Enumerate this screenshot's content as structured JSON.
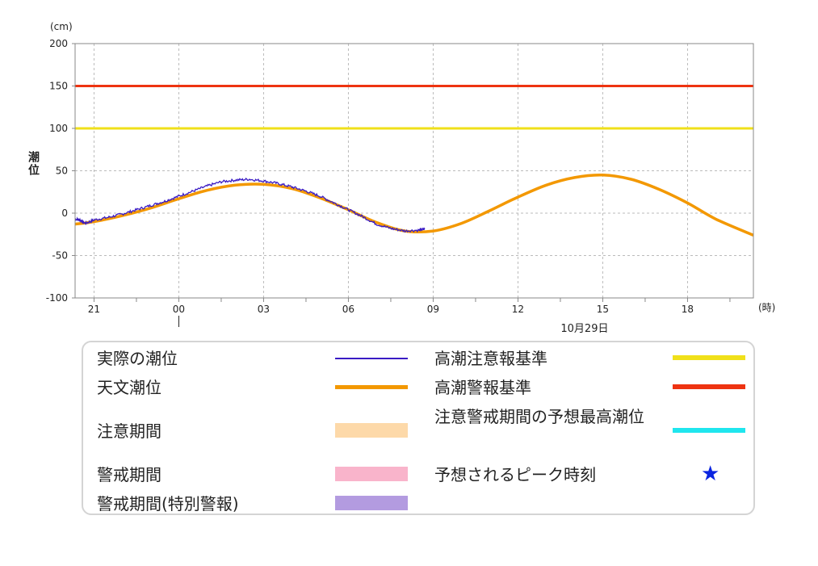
{
  "chart_data": {
    "type": "line",
    "ylabel": "潮位",
    "yunit": "(cm)",
    "xunit": "(時)",
    "ylim": [
      -100,
      200
    ],
    "yticks": [
      200,
      150,
      100,
      50,
      0,
      -50,
      -100
    ],
    "x_range_hours": [
      20.33,
      44.33
    ],
    "xticks": [
      {
        "hour": 21,
        "label": "21"
      },
      {
        "hour": 24,
        "label": "00"
      },
      {
        "hour": 27,
        "label": "03"
      },
      {
        "hour": 30,
        "label": "06"
      },
      {
        "hour": 33,
        "label": "09"
      },
      {
        "hour": 36,
        "label": "12"
      },
      {
        "hour": 39,
        "label": "15"
      },
      {
        "hour": 42,
        "label": "18"
      }
    ],
    "date_label": "10月29日",
    "date_marker_hour": 24,
    "grid": true,
    "series": [
      {
        "name": "天文潮位",
        "color": "#f39800",
        "x": [
          20.33,
          21,
          22,
          23,
          24,
          25,
          26,
          27,
          28,
          29,
          30,
          31,
          32,
          33,
          34,
          35,
          36,
          37,
          38,
          39,
          40,
          41,
          42,
          43,
          44.33
        ],
        "y": [
          -13,
          -10,
          -3,
          6,
          17,
          27,
          33,
          34,
          29,
          18,
          4,
          -11,
          -21,
          -21,
          -12,
          3,
          19,
          33,
          42,
          45,
          40,
          28,
          12,
          -7,
          -26
        ]
      },
      {
        "name": "実際の潮位",
        "color": "#3a1bc4",
        "x": [
          20.33,
          20.5,
          20.7,
          21,
          21.5,
          22,
          22.5,
          23,
          23.5,
          24,
          24.5,
          25,
          25.5,
          26,
          26.5,
          27,
          27.5,
          28,
          28.5,
          29,
          29.5,
          30,
          30.5,
          31,
          31.5,
          32,
          32.5,
          32.7
        ],
        "y": [
          -7,
          -8,
          -12,
          -8,
          -5,
          -1,
          4,
          9,
          14,
          20,
          26,
          32,
          37,
          39,
          40,
          38,
          35,
          31,
          26,
          20,
          12,
          4,
          -4,
          -13,
          -18,
          -21,
          -20,
          -19
        ]
      }
    ],
    "reference_lines": [
      {
        "name": "高潮注意報基準",
        "value": 100,
        "color": "#f0e01a"
      },
      {
        "name": "高潮警報基準",
        "value": 150,
        "color": "#ee3311"
      }
    ]
  },
  "legend": {
    "items": [
      {
        "label": "実際の潮位",
        "color": "#3a1bc4",
        "swatch": "thin-line"
      },
      {
        "label": "天文潮位",
        "color": "#f39800",
        "swatch": "thick-line"
      },
      {
        "label": "注意期間",
        "color": "#fdd9a9",
        "swatch": "band"
      },
      {
        "label": "警戒期間",
        "color": "#f9b4cb",
        "swatch": "band"
      },
      {
        "label": "警戒期間(特別警報)",
        "color": "#b39be0",
        "swatch": "band"
      },
      {
        "label": "高潮注意報基準",
        "color": "#f0e01a",
        "swatch": "thick-line"
      },
      {
        "label": "高潮警報基準",
        "color": "#ee3311",
        "swatch": "thick-line"
      },
      {
        "label": "注意警戒期間の予想最高潮位",
        "color": "#1fe6ee",
        "swatch": "thick-line"
      },
      {
        "label": "予想されるピーク時刻",
        "color": "#0a24e0",
        "swatch": "star-icon"
      }
    ]
  }
}
